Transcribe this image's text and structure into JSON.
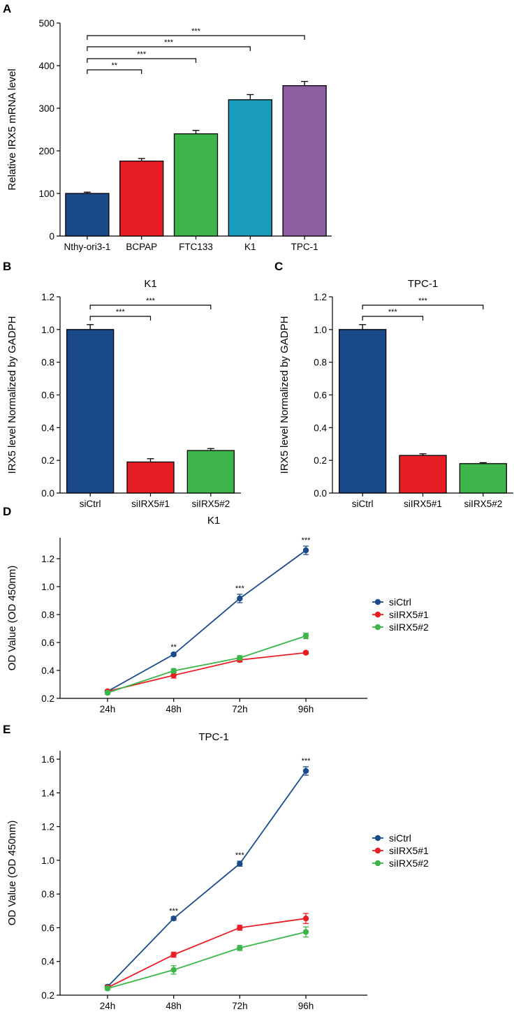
{
  "chart_data": [
    {
      "panel": "A",
      "type": "bar",
      "title": "",
      "xlabel": "",
      "ylabel": "Relative IRX5 mRNA level",
      "ylim": [
        0,
        500
      ],
      "yticks": [
        "0",
        "100",
        "200",
        "300",
        "400",
        "500"
      ],
      "categories": [
        "Nthy-ori3-1",
        "BCPAP",
        "FTC133",
        "K1",
        "TPC-1"
      ],
      "values": [
        100,
        176,
        240,
        320,
        353
      ],
      "errors": [
        3,
        6,
        8,
        12,
        10
      ],
      "colors": [
        "#1a4a8a",
        "#e81e25",
        "#3db54a",
        "#1a9bbb",
        "#8e5ea2"
      ],
      "annotations": [
        {
          "from": 0,
          "to": 1,
          "label": "**"
        },
        {
          "from": 0,
          "to": 2,
          "label": "***"
        },
        {
          "from": 0,
          "to": 3,
          "label": "***"
        },
        {
          "from": 0,
          "to": 4,
          "label": "***"
        }
      ]
    },
    {
      "panel": "B",
      "type": "bar",
      "title": "K1",
      "xlabel": "",
      "ylabel": "IRX5 level Normalized by GADPH",
      "ylim": [
        0,
        1.2
      ],
      "yticks": [
        "0.0",
        "0.2",
        "0.4",
        "0.6",
        "0.8",
        "1.0",
        "1.2"
      ],
      "categories": [
        "siCtrl",
        "siIRX5#1",
        "siIRX5#2"
      ],
      "values": [
        1.0,
        0.19,
        0.26
      ],
      "errors": [
        0.03,
        0.02,
        0.012
      ],
      "colors": [
        "#1a4a8a",
        "#e81e25",
        "#3db54a"
      ],
      "annotations": [
        {
          "from": 0,
          "to": 1,
          "label": "***"
        },
        {
          "from": 0,
          "to": 2,
          "label": "***"
        }
      ]
    },
    {
      "panel": "C",
      "type": "bar",
      "title": "TPC-1",
      "xlabel": "",
      "ylabel": "IRX5 level Normalized by GADPH",
      "ylim": [
        0,
        1.2
      ],
      "yticks": [
        "0.0",
        "0.2",
        "0.4",
        "0.6",
        "0.8",
        "1.0",
        "1.2"
      ],
      "categories": [
        "siCtrl",
        "siIRX5#1",
        "siIRX5#2"
      ],
      "values": [
        1.0,
        0.23,
        0.18
      ],
      "errors": [
        0.03,
        0.01,
        0.006
      ],
      "colors": [
        "#1a4a8a",
        "#e81e25",
        "#3db54a"
      ],
      "annotations": [
        {
          "from": 0,
          "to": 1,
          "label": "***"
        },
        {
          "from": 0,
          "to": 2,
          "label": "***"
        }
      ]
    },
    {
      "panel": "D",
      "type": "line",
      "title": "K1",
      "xlabel": "",
      "ylabel": "OD Value (OD 450nm)",
      "ylim": [
        0.2,
        1.35
      ],
      "yticks": [
        "0.2",
        "0.4",
        "0.6",
        "0.8",
        "1.0",
        "1.2"
      ],
      "x": [
        "24h",
        "48h",
        "72h",
        "96h"
      ],
      "series": [
        {
          "name": "siCtrl",
          "color": "#1a4a8a",
          "values": [
            0.25,
            0.515,
            0.915,
            1.26
          ],
          "errors": [
            0.01,
            0.01,
            0.03,
            0.03
          ]
        },
        {
          "name": "siIRX5#1",
          "color": "#e81e25",
          "values": [
            0.25,
            0.365,
            0.475,
            0.527
          ],
          "errors": [
            0.01,
            0.02,
            0.015,
            0.01
          ]
        },
        {
          "name": "siIRX5#2",
          "color": "#3db54a",
          "values": [
            0.24,
            0.397,
            0.49,
            0.647
          ],
          "errors": [
            0.01,
            0.015,
            0.015,
            0.02
          ]
        }
      ],
      "annotations": [
        {
          "x": 1,
          "label": "**"
        },
        {
          "x": 2,
          "label": "***"
        },
        {
          "x": 3,
          "label": "***"
        }
      ],
      "legend": "right"
    },
    {
      "panel": "E",
      "type": "line",
      "title": "TPC-1",
      "xlabel": "",
      "ylabel": "OD Value (OD 450nm)",
      "ylim": [
        0.2,
        1.65
      ],
      "yticks": [
        "0.2",
        "0.4",
        "0.6",
        "0.8",
        "1.0",
        "1.2",
        "1.4",
        "1.6"
      ],
      "x": [
        "24h",
        "48h",
        "72h",
        "96h"
      ],
      "series": [
        {
          "name": "siCtrl",
          "color": "#1a4a8a",
          "values": [
            0.25,
            0.655,
            0.98,
            1.53
          ],
          "errors": [
            0.01,
            0.01,
            0.015,
            0.025
          ]
        },
        {
          "name": "siIRX5#1",
          "color": "#e81e25",
          "values": [
            0.245,
            0.44,
            0.6,
            0.655
          ],
          "errors": [
            0.01,
            0.015,
            0.015,
            0.03
          ]
        },
        {
          "name": "siIRX5#2",
          "color": "#3db54a",
          "values": [
            0.24,
            0.35,
            0.48,
            0.575
          ],
          "errors": [
            0.01,
            0.025,
            0.015,
            0.03
          ]
        }
      ],
      "annotations": [
        {
          "x": 1,
          "label": "***"
        },
        {
          "x": 2,
          "label": "***"
        },
        {
          "x": 3,
          "label": "***"
        }
      ],
      "legend": "right"
    }
  ]
}
